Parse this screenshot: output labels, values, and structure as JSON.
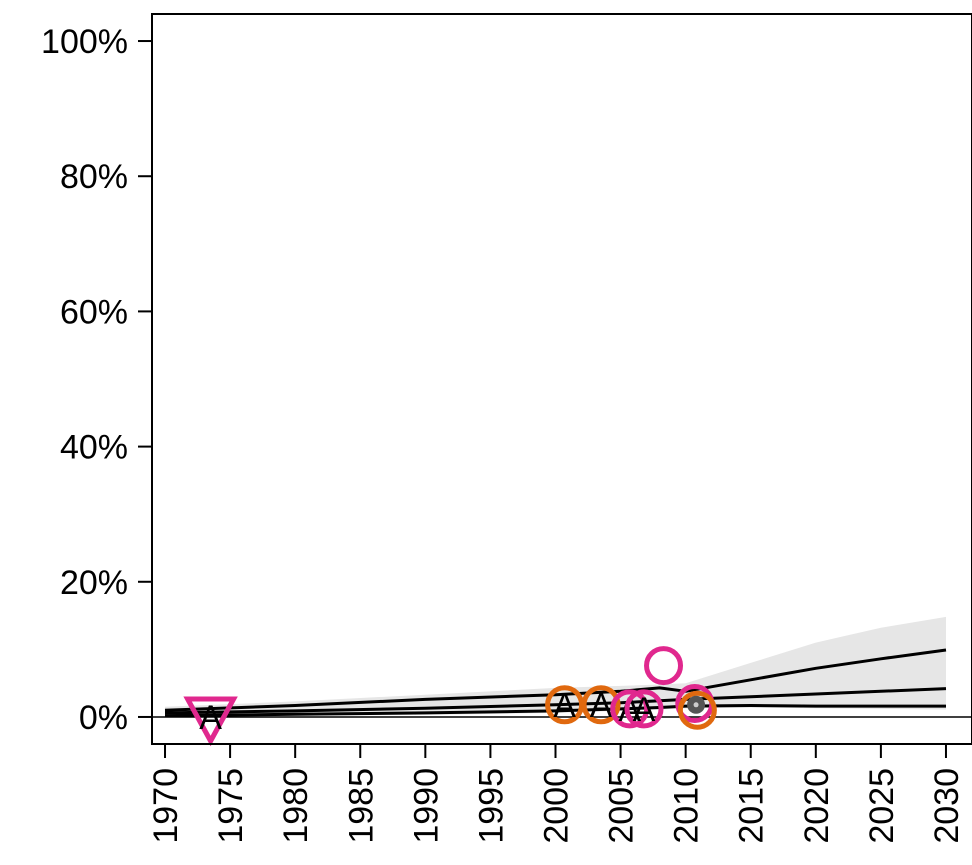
{
  "chart_data": {
    "type": "line",
    "title": "",
    "xlabel": "",
    "ylabel": "",
    "xlim": [
      1969,
      2032
    ],
    "ylim": [
      -4,
      104
    ],
    "y_ticks": [
      0,
      20,
      40,
      60,
      80,
      100
    ],
    "y_tick_labels": [
      "0%",
      "20%",
      "40%",
      "60%",
      "80%",
      "100%"
    ],
    "x_ticks": [
      1970,
      1975,
      1980,
      1985,
      1990,
      1995,
      2000,
      2005,
      2010,
      2015,
      2020,
      2025,
      2030
    ],
    "x_tick_labels": [
      "1970",
      "1975",
      "1980",
      "1985",
      "1990",
      "1995",
      "2000",
      "2005",
      "2010",
      "2015",
      "2020",
      "2025",
      "2030"
    ],
    "grid": false,
    "reference_line_y": 0,
    "band": {
      "color": "#e6e6e6",
      "x": [
        1970,
        1980,
        1990,
        2000,
        2005,
        2008,
        2010,
        2015,
        2020,
        2025,
        2030
      ],
      "lower": [
        0.1,
        0.2,
        0.3,
        0.6,
        0.9,
        1.1,
        1.3,
        1.4,
        1.3,
        1.2,
        1.1
      ],
      "upper": [
        1.5,
        2.3,
        3.3,
        4.3,
        4.6,
        4.8,
        5.0,
        8.0,
        11.0,
        13.2,
        14.8
      ]
    },
    "series": [
      {
        "color": "#000000",
        "x": [
          1970,
          1980,
          1990,
          2000,
          2005,
          2008,
          2010,
          2015,
          2020,
          2025,
          2030
        ],
        "values": [
          1.0,
          1.7,
          2.6,
          3.3,
          3.8,
          4.3,
          3.8,
          5.5,
          7.2,
          8.6,
          9.9
        ]
      },
      {
        "color": "#000000",
        "x": [
          1970,
          1980,
          1990,
          2000,
          2005,
          2008,
          2010,
          2015,
          2020,
          2025,
          2030
        ],
        "values": [
          0.6,
          0.9,
          1.3,
          1.8,
          2.1,
          2.4,
          2.6,
          3.0,
          3.4,
          3.8,
          4.2
        ]
      },
      {
        "color": "#000000",
        "x": [
          1970,
          1980,
          1990,
          2000,
          2005,
          2008,
          2010,
          2015,
          2020,
          2025,
          2030
        ],
        "values": [
          0.2,
          0.4,
          0.6,
          0.9,
          1.2,
          1.4,
          1.6,
          1.7,
          1.6,
          1.6,
          1.6
        ]
      }
    ],
    "points": [
      {
        "x": 1973.5,
        "y": 0.0,
        "shape": "triangle-down",
        "color": "#e0288e",
        "letter": "A"
      },
      {
        "x": 2000.7,
        "y": 1.8,
        "shape": "circle",
        "color": "#e0690f",
        "letter": "A"
      },
      {
        "x": 2003.5,
        "y": 1.8,
        "shape": "circle",
        "color": "#e0690f",
        "letter": "A"
      },
      {
        "x": 2005.7,
        "y": 1.2,
        "shape": "circle",
        "color": "#e0288e",
        "letter": "A"
      },
      {
        "x": 2006.8,
        "y": 1.2,
        "shape": "circle",
        "color": "#e0288e",
        "letter": "A"
      },
      {
        "x": 2008.3,
        "y": 7.6,
        "shape": "circle",
        "color": "#e0288e",
        "letter": ""
      },
      {
        "x": 2010.7,
        "y": 2.0,
        "shape": "circle",
        "color": "#e0288e",
        "letter": ""
      },
      {
        "x": 2010.9,
        "y": 1.0,
        "shape": "circle",
        "color": "#e0690f",
        "letter": ""
      }
    ]
  }
}
